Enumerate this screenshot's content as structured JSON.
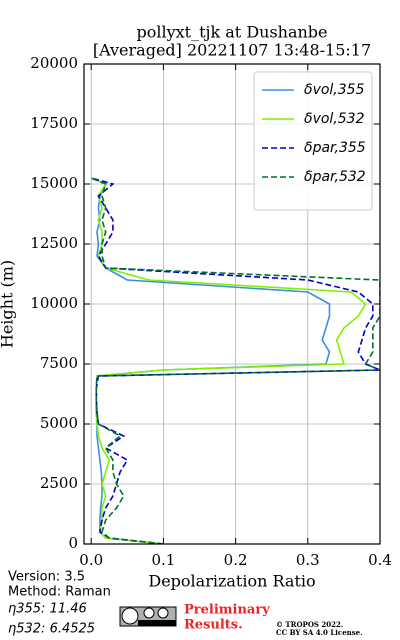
{
  "chart_data": {
    "type": "line",
    "title": "pollyxt_tjk at Dushanbe",
    "subtitle": "[Averaged] 20221107 13:48-15:17",
    "x_label": "Depolarization Ratio",
    "y_label": "Height (m)",
    "y": [
      0,
      250,
      500,
      1000,
      1500,
      2000,
      2500,
      3000,
      3500,
      4000,
      4500,
      5000,
      5500,
      6000,
      6500,
      7000,
      7250,
      7500,
      8000,
      8500,
      9000,
      9500,
      10000,
      10500,
      11000,
      11500,
      12000,
      12500,
      13000,
      13500,
      14000,
      14500,
      15000,
      15250
    ],
    "series": [
      {
        "name": "δvol,355",
        "color": "#3a8ee6",
        "linestyle": "-",
        "values": [
          0.1,
          0.02,
          0.012,
          0.012,
          0.013,
          0.015,
          0.015,
          0.014,
          0.012,
          0.01,
          0.008,
          0.008,
          0.007,
          0.007,
          0.007,
          0.008,
          0.1,
          0.325,
          0.33,
          0.32,
          0.325,
          0.33,
          0.33,
          0.3,
          0.05,
          0.02,
          0.008,
          0.01,
          0.008,
          0.012,
          0.01,
          0.012,
          0.02,
          0.0
        ]
      },
      {
        "name": "δvol,532",
        "color": "#80f000",
        "linestyle": "-",
        "values": [
          0.1,
          0.02,
          0.012,
          0.015,
          0.015,
          0.02,
          0.015,
          0.02,
          0.025,
          0.015,
          0.01,
          0.008,
          0.008,
          0.007,
          0.007,
          0.008,
          0.1,
          0.35,
          0.345,
          0.34,
          0.35,
          0.37,
          0.38,
          0.36,
          0.08,
          0.02,
          0.01,
          0.015,
          0.015,
          0.01,
          0.015,
          0.01,
          0.02,
          0.0
        ]
      },
      {
        "name": "δpar,355",
        "color": "#0000cc",
        "linestyle": "--",
        "values": [
          0.1,
          0.025,
          0.012,
          0.015,
          0.02,
          0.03,
          0.035,
          0.04,
          0.05,
          0.02,
          0.045,
          0.01,
          0.008,
          0.007,
          0.007,
          0.01,
          0.4,
          0.38,
          0.37,
          0.375,
          0.38,
          0.39,
          0.39,
          0.37,
          0.3,
          0.02,
          0.01,
          0.02,
          0.03,
          0.03,
          0.02,
          0.01,
          0.03,
          0.0
        ]
      },
      {
        "name": "δpar,532",
        "color": "#00702c",
        "linestyle": "--",
        "values": [
          0.1,
          0.025,
          0.015,
          0.02,
          0.035,
          0.045,
          0.035,
          0.03,
          0.03,
          0.02,
          0.04,
          0.01,
          0.008,
          0.007,
          0.007,
          0.008,
          0.4,
          0.38,
          0.39,
          0.39,
          0.39,
          0.4,
          0.4,
          0.4,
          0.4,
          0.02,
          0.015,
          0.015,
          0.02,
          0.015,
          0.02,
          0.015,
          0.02,
          0.0
        ]
      }
    ],
    "xlim": [
      -0.01,
      0.4
    ],
    "xticks": [
      {
        "value": 0,
        "label": "0.0"
      },
      0.1,
      0.2,
      0.3,
      0.4
    ],
    "ylim": [
      0,
      20000
    ],
    "yticks": [
      0,
      2500,
      5000,
      7500,
      10000,
      12500,
      15000,
      17500,
      20000
    ],
    "grid": true,
    "legend": "upper right"
  },
  "footer": {
    "version": "Version: 3.5",
    "method": "Method: Raman",
    "eta355": "η355:  11.46",
    "eta532": "η532: 6.4525",
    "preliminary": "Preliminary",
    "results": "Results.",
    "copyright": "© TROPOS 2022.",
    "license": "CC BY SA 4.0 License."
  }
}
